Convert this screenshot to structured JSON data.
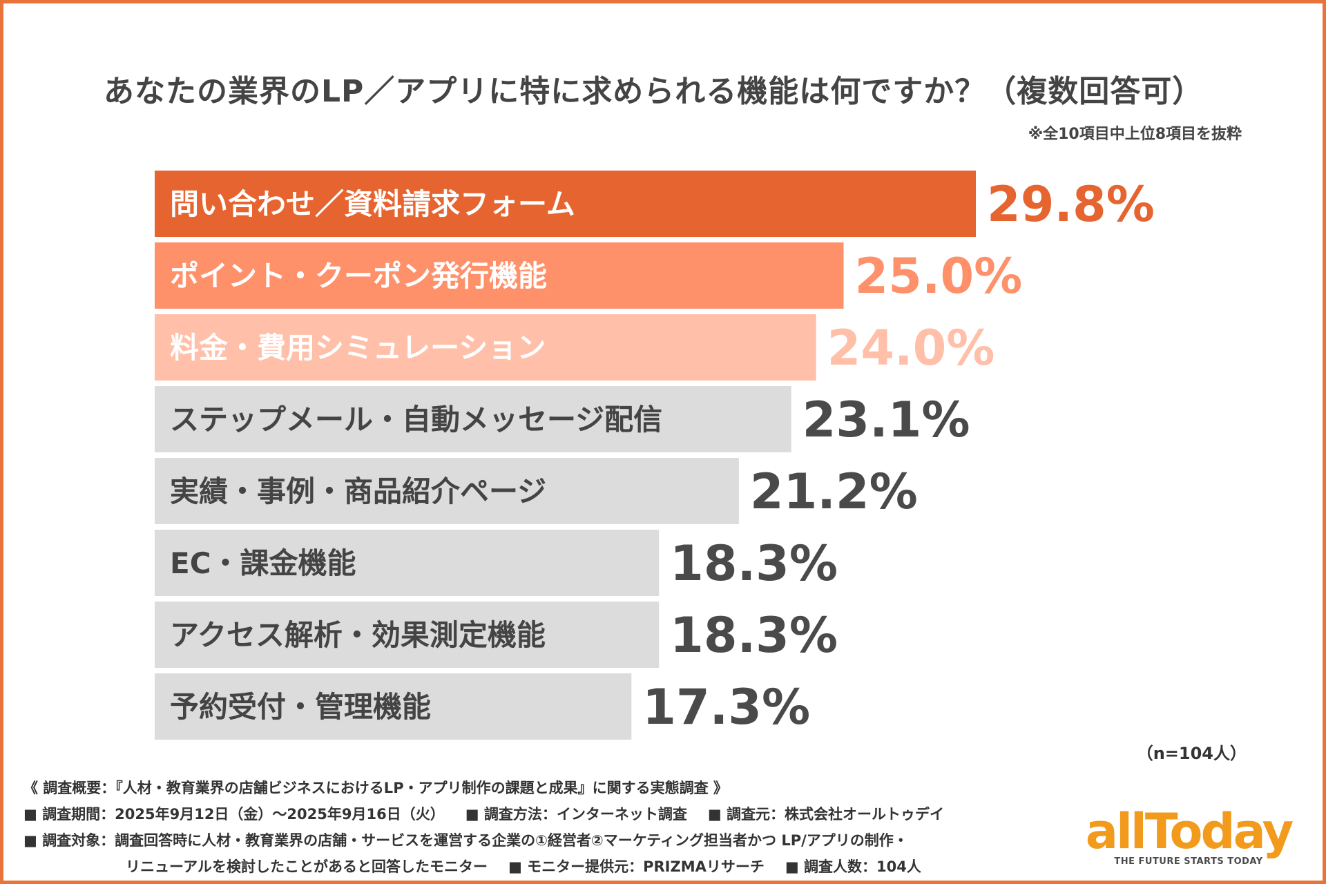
{
  "title": "あなたの業界のLP／アプリに特に求められる機能は何ですか？（複数回答可）",
  "subnote": "※全10項目中上位8項目を抜粋",
  "sample_note": "（n=104人）",
  "colors": {
    "frame": "#e8743b",
    "rank1": "#e5642f",
    "rank2": "#ff916a",
    "rank3": "#ffbfa8",
    "other": "#dcdcdc",
    "label_light": "#ffffff",
    "label_dark": "#444444",
    "pct_dark": "#4a4a4a",
    "logo": "#f29a1c"
  },
  "chart_data": {
    "type": "bar",
    "orientation": "horizontal",
    "categories": [
      "問い合わせ／資料請求フォーム",
      "ポイント・クーポン発行機能",
      "料金・費用シミュレーション",
      "ステップメール・自動メッセージ配信",
      "実績・事例・商品紹介ページ",
      "EC・課金機能",
      "アクセス解析・効果測定機能",
      "予約受付・管理機能"
    ],
    "values": [
      29.8,
      25.0,
      24.0,
      23.1,
      21.2,
      18.3,
      18.3,
      17.3
    ],
    "value_labels": [
      "29.8%",
      "25.0%",
      "24.0%",
      "23.1%",
      "21.2%",
      "18.3%",
      "18.3%",
      "17.3%"
    ],
    "unit": "%",
    "title": "あなたの業界のLP／アプリに特に求められる機能は何ですか？（複数回答可）",
    "xlabel": "",
    "ylabel": "",
    "grid": false,
    "legend": "none"
  },
  "footer": {
    "summary": "《 調査概要：『人材・教育業界の店舗ビジネスにおけるLP・アプリ制作の課題と成果』に関する実態調査 》",
    "period": "■ 調査期間：2025年9月12日（金）〜2025年9月16日（火）",
    "method": "■ 調査方法：インターネット調査",
    "source": "■ 調査元：株式会社オールトゥデイ",
    "target": "■ 調査対象：調査回答時に人材・教育業界の店舗・サービスを運営する企業の①経営者②マーケティング担当者かつ LP/アプリの制作・",
    "target_cont": "リニューアルを検討したことがあると回答したモニター",
    "provider": "■ モニター提供元：PRIZMAリサーチ",
    "count": "■ 調査人数：104人"
  },
  "logo": {
    "word": "allToday",
    "tagline": "THE FUTURE STARTS TODAY"
  }
}
